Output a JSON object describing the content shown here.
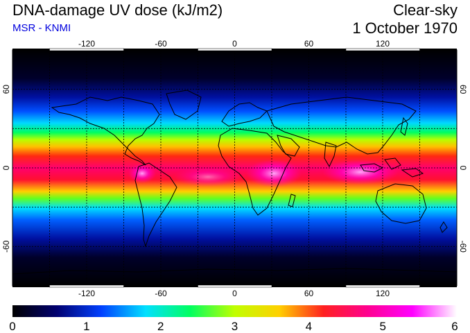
{
  "header": {
    "title": "DNA-damage UV dose (kJ/m2)",
    "source": "MSR - KNMI",
    "condition": "Clear-sky",
    "date": "1 October 1970"
  },
  "map": {
    "projection": "equirectangular",
    "lon_range": [
      -180,
      180
    ],
    "lat_range": [
      -90,
      90
    ],
    "lon_ticks": [
      "-120",
      "-60",
      "0",
      "60",
      "120"
    ],
    "lat_ticks": [
      "60",
      "0",
      "-60"
    ],
    "gridlines": "dashed",
    "background_color": "#000000",
    "coastline_color": "#000000"
  },
  "colorbar": {
    "min": 0,
    "max": 6,
    "tick_labels": [
      "0",
      "1",
      "2",
      "3",
      "4",
      "5",
      "6"
    ],
    "colors": [
      "#000000",
      "#000070",
      "#0040ff",
      "#00e0ff",
      "#00ff60",
      "#c0ff00",
      "#ffd000",
      "#ff2020",
      "#ff0090",
      "#ff00ff",
      "#ffffff"
    ]
  }
}
